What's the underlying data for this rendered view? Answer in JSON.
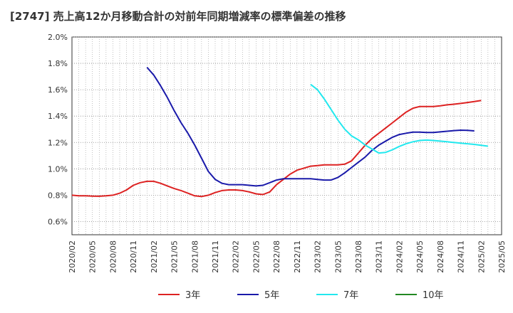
{
  "chart_data": {
    "type": "line",
    "title": "[2747]  売上高12か月移動合計の対前年同期増減率の標準偏差の推移",
    "ylim": [
      0.5,
      2.0
    ],
    "y_ticks": [
      "2.0%",
      "1.8%",
      "1.6%",
      "1.4%",
      "1.2%",
      "1.0%",
      "0.8%",
      "0.6%"
    ],
    "y_tick_values": [
      2.0,
      1.8,
      1.6,
      1.4,
      1.2,
      1.0,
      0.8,
      0.6
    ],
    "x_ticks": [
      "2020/02",
      "2020/05",
      "2020/08",
      "2020/11",
      "2021/02",
      "2021/05",
      "2021/08",
      "2021/11",
      "2022/02",
      "2022/05",
      "2022/08",
      "2022/11",
      "2023/02",
      "2023/05",
      "2023/08",
      "2023/11",
      "2024/02",
      "2024/05",
      "2024/08",
      "2024/11",
      "2025/02",
      "2025/05"
    ],
    "x_range_months": [
      0,
      63
    ],
    "grid": "dotted",
    "legend_position": "bottom",
    "series": [
      {
        "name": "3年",
        "color": "#dd2222",
        "start_month": 0,
        "values": [
          0.8,
          0.795,
          0.795,
          0.793,
          0.792,
          0.795,
          0.8,
          0.815,
          0.84,
          0.875,
          0.895,
          0.905,
          0.905,
          0.89,
          0.87,
          0.85,
          0.835,
          0.815,
          0.795,
          0.79,
          0.8,
          0.82,
          0.835,
          0.84,
          0.84,
          0.835,
          0.825,
          0.81,
          0.805,
          0.825,
          0.88,
          0.92,
          0.96,
          0.99,
          1.005,
          1.02,
          1.025,
          1.03,
          1.03,
          1.03,
          1.035,
          1.06,
          1.12,
          1.18,
          1.23,
          1.27,
          1.31,
          1.35,
          1.39,
          1.43,
          1.46,
          1.473,
          1.473,
          1.473,
          1.478,
          1.485,
          1.49,
          1.496,
          1.503,
          1.51,
          1.518
        ]
      },
      {
        "name": "5年",
        "color": "#1a1aaa",
        "start_month": 11,
        "values": [
          1.77,
          1.71,
          1.63,
          1.54,
          1.44,
          1.35,
          1.27,
          1.18,
          1.08,
          0.98,
          0.92,
          0.89,
          0.88,
          0.88,
          0.88,
          0.875,
          0.87,
          0.875,
          0.895,
          0.915,
          0.925,
          0.925,
          0.925,
          0.925,
          0.925,
          0.92,
          0.915,
          0.915,
          0.935,
          0.97,
          1.01,
          1.05,
          1.09,
          1.14,
          1.18,
          1.21,
          1.24,
          1.26,
          1.27,
          1.278,
          1.278,
          1.276,
          1.276,
          1.28,
          1.285,
          1.29,
          1.293,
          1.292,
          1.288
        ]
      },
      {
        "name": "7年",
        "color": "#22e8ee",
        "start_month": 35,
        "values": [
          1.64,
          1.6,
          1.53,
          1.45,
          1.37,
          1.3,
          1.25,
          1.22,
          1.18,
          1.15,
          1.12,
          1.125,
          1.145,
          1.17,
          1.19,
          1.205,
          1.215,
          1.218,
          1.215,
          1.21,
          1.205,
          1.2,
          1.195,
          1.19,
          1.185,
          1.178,
          1.172
        ]
      },
      {
        "name": "10年",
        "color": "#228822",
        "start_month": 0,
        "values": []
      }
    ]
  }
}
